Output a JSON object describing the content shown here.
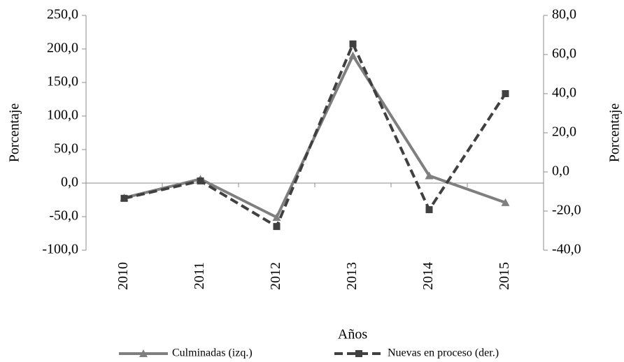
{
  "chart_data": {
    "type": "line",
    "categories": [
      "2010",
      "2011",
      "2012",
      "2013",
      "2014",
      "2015"
    ],
    "series": [
      {
        "name": "Culminadas (izq.)",
        "color": "#7f7f7f",
        "values": [
          -22,
          6,
          -51,
          190,
          11,
          -29
        ]
      },
      {
        "name": "Nuevas en proceso (der.)",
        "color": "#404040",
        "axis": "y2",
        "values": [
          -13.5,
          -4.6,
          -27.9,
          65.4,
          -19.3,
          40
        ]
      }
    ],
    "ylim": [
      -100,
      250
    ],
    "yticks": [
      {
        "value": -100,
        "label": "-100,0"
      },
      {
        "value": -50,
        "label": "-50,0"
      },
      {
        "value": 0,
        "label": "0,0"
      },
      {
        "value": 50,
        "label": "50,0"
      },
      {
        "value": 100,
        "label": "100,0"
      },
      {
        "value": 150,
        "label": "150,0"
      },
      {
        "value": 200,
        "label": "200,0"
      },
      {
        "value": 250,
        "label": "250,0"
      }
    ],
    "y2lim": [
      -40,
      80
    ],
    "y2ticks": [
      {
        "value": -40,
        "label": "-40,0"
      },
      {
        "value": -20,
        "label": "-20,0"
      },
      {
        "value": 0,
        "label": "0,0"
      },
      {
        "value": 20,
        "label": "20,0"
      },
      {
        "value": 40,
        "label": "40,0"
      },
      {
        "value": 60,
        "label": "60,0"
      },
      {
        "value": 80,
        "label": "80,0"
      }
    ],
    "ylabel": "Porcentaje",
    "y2label": "Porcentaje",
    "xlabel": "Años",
    "legend": "bottom"
  }
}
